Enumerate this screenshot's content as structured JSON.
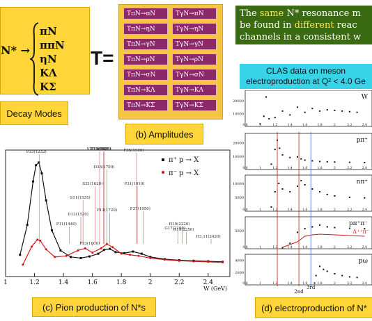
{
  "decay": {
    "nstar": "N* →",
    "modes": [
      "πN",
      "ππN",
      "ηN",
      "KΛ",
      "KΣ"
    ],
    "caption": "Decay Modes"
  },
  "amplitudes": {
    "t_symbol": "T=",
    "left": [
      "TπN→πN",
      "TπN→ηN",
      "TπN→γN",
      "TπN→ρN",
      "TπN→σN",
      "TπN→KΛ",
      "TπN→KΣ"
    ],
    "right": [
      "TγN→πN",
      "TγN→ηN",
      "TγN→γN",
      "TγN→ρN",
      "TγN→σN",
      "TγN→KΛ",
      "TγN→KΣ"
    ],
    "caption": "(b) Amplitudes"
  },
  "note": {
    "line1_a": "The ",
    "line1_hl": "same",
    "line1_b": " N* resonance m",
    "line2_a": "be found in ",
    "line2_hl": "different",
    "line2_b": " reac",
    "line3": "channels in a consistent w"
  },
  "clas": {
    "line1": "CLAS data on meson",
    "line2": "electroproduction at Q² < 4.0 Ge"
  },
  "pion": {
    "caption": "(c) Pion production of N*s",
    "xaxis_label": "W (GeV)",
    "legend": [
      "π⁺ p → X",
      "π⁻ p → X"
    ],
    "colors": {
      "pi_plus": "#111111",
      "pi_minus": "#d01818"
    },
    "resonances": [
      "P33(1232)",
      "P11(1440)",
      "D13(1520)",
      "S11(1535)",
      "P33(1600)",
      "S31(1620)",
      "S11(1650)",
      "D15(1675)",
      "F15(1680)",
      "D33(1700)",
      "P13(1720)",
      "F35(1905)",
      "P31(1910)",
      "F37(1950)",
      "G17(2190)",
      "H19(2220)",
      "G19(2250)",
      "H3,11(2420)"
    ]
  },
  "electro": {
    "caption": "(d) electroproduction of N*",
    "panel_labels": [
      "W",
      "pπ⁺",
      "nπ⁺",
      "pπ⁺π⁻",
      "pω"
    ],
    "extra_label": "Δ⁺⁺π⁻",
    "markers": [
      "2nd",
      "3rd"
    ]
  },
  "chart_data": [
    {
      "type": "line",
      "title": "",
      "xlabel": "W (GeV)",
      "ylabel": "",
      "xlim": [
        1.0,
        2.55
      ],
      "x_ticks": [
        "1",
        "1.2",
        "1.4",
        "1.6",
        "1.8",
        "2",
        "2.2",
        "2.4"
      ],
      "series": [
        {
          "name": "π⁺ p → X",
          "x": [
            1.1,
            1.15,
            1.19,
            1.21,
            1.23,
            1.25,
            1.28,
            1.32,
            1.38,
            1.45,
            1.52,
            1.58,
            1.64,
            1.68,
            1.72,
            1.76,
            1.82,
            1.88,
            1.94,
            2.0,
            2.1,
            2.2,
            2.3,
            2.4,
            2.5
          ],
          "y": [
            40,
            95,
            175,
            205,
            210,
            190,
            140,
            85,
            48,
            36,
            34,
            37,
            42,
            49,
            51,
            45,
            43,
            46,
            42,
            36,
            32,
            30,
            29,
            28,
            27
          ]
        },
        {
          "name": "π⁻ p → X",
          "x": [
            1.12,
            1.18,
            1.22,
            1.24,
            1.28,
            1.34,
            1.42,
            1.5,
            1.55,
            1.6,
            1.66,
            1.7,
            1.74,
            1.8,
            1.86,
            1.92,
            2.0,
            2.1,
            2.2,
            2.3,
            2.4,
            2.5
          ],
          "y": [
            22,
            55,
            68,
            66,
            50,
            36,
            38,
            48,
            52,
            44,
            52,
            60,
            54,
            42,
            40,
            38,
            34,
            31,
            29,
            28,
            27,
            26
          ]
        }
      ]
    },
    {
      "type": "scatter",
      "xlabel": "",
      "x_ticks": [
        "0.8",
        "1",
        "1.2",
        "1.4",
        "1.6",
        "1.8",
        "2",
        "2.2",
        "2.4"
      ],
      "panels": [
        {
          "name": "W",
          "y_ticks": [
            "20000",
            "10000"
          ],
          "x": [
            1.0,
            1.05,
            1.08,
            1.12,
            1.2,
            1.3,
            1.4,
            1.5,
            1.6,
            1.7,
            1.8,
            1.9,
            2.0,
            2.1,
            2.2,
            2.3
          ],
          "y": [
            2000,
            8000,
            23000,
            6000,
            7000,
            12000,
            9000,
            15000,
            11000,
            14000,
            12000,
            13000,
            12500,
            12000,
            11500,
            11000
          ]
        },
        {
          "name": "pπ⁺",
          "y_ticks": [
            "20000",
            "10000"
          ],
          "x": [
            1.15,
            1.2,
            1.23,
            1.26,
            1.3,
            1.4,
            1.5,
            1.55,
            1.6,
            1.7,
            1.8,
            1.9,
            2.0,
            2.2,
            2.4
          ],
          "y": [
            4000,
            15000,
            22000,
            16000,
            11000,
            9000,
            9500,
            8000,
            7000,
            6500,
            6000,
            5800,
            5600,
            5400,
            5200
          ]
        },
        {
          "name": "nπ⁺",
          "y_ticks": [
            "10000",
            "5000"
          ],
          "x": [
            1.15,
            1.2,
            1.25,
            1.3,
            1.4,
            1.5,
            1.55,
            1.6,
            1.7,
            1.8,
            1.9,
            2.0,
            2.2,
            2.4
          ],
          "y": [
            1500,
            7000,
            10000,
            8000,
            7000,
            9000,
            11000,
            9500,
            8000,
            7000,
            6000,
            5500,
            5000,
            4800
          ]
        },
        {
          "name": "pπ⁺π⁻",
          "y_ticks": [
            "5000"
          ],
          "x": [
            1.3,
            1.4,
            1.5,
            1.6,
            1.7,
            1.8,
            1.9,
            2.0,
            2.2,
            2.4
          ],
          "y": [
            300,
            1500,
            4500,
            5500,
            6000,
            6500,
            6000,
            5800,
            5600,
            5500
          ]
        },
        {
          "name": "pω",
          "y_ticks": [
            "4000",
            "2000"
          ],
          "x": [
            1.73,
            1.75,
            1.8,
            1.85,
            1.9,
            2.0,
            2.1,
            2.2,
            2.3
          ],
          "y": [
            300,
            1500,
            3000,
            2500,
            2200,
            1800,
            1500,
            1300,
            1200
          ]
        }
      ]
    }
  ]
}
